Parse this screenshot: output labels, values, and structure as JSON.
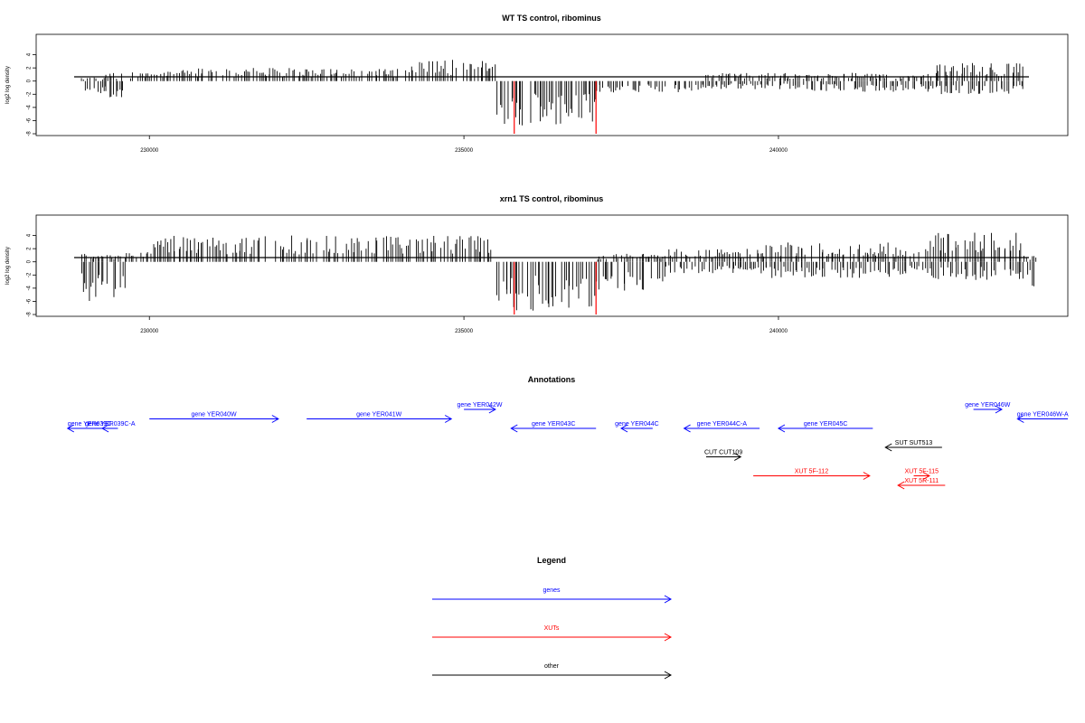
{
  "chart_data": [
    {
      "type": "bar",
      "title": "WT TS control, ribominus",
      "xlabel": "",
      "ylabel": "log2 log density",
      "ylim": [
        -8,
        6
      ],
      "yticks": [
        "4",
        "2",
        "0",
        "-2",
        "-4",
        "-6",
        "-8"
      ],
      "xlim": [
        228200,
        244600
      ],
      "xticks": [
        "230000",
        "235000",
        "240000"
      ],
      "bar_color": "#000000",
      "highlight_color": "#ff0000",
      "highlight_values": [
        {
          "x": 235800,
          "y": -8
        },
        {
          "x": 237100,
          "y": -8
        }
      ],
      "density_profile": [
        {
          "start": 228900,
          "end": 229300,
          "pos": 0.5,
          "neg": 2.2
        },
        {
          "start": 229300,
          "end": 229600,
          "pos": 1.0,
          "neg": 2.5
        },
        {
          "start": 229600,
          "end": 230500,
          "pos": 1.2,
          "neg": 0.2
        },
        {
          "start": 230500,
          "end": 232500,
          "pos": 1.6,
          "neg": 0.2
        },
        {
          "start": 232500,
          "end": 234000,
          "pos": 1.5,
          "neg": 0.2
        },
        {
          "start": 234000,
          "end": 235500,
          "pos": 2.6,
          "neg": 0.3
        },
        {
          "start": 235500,
          "end": 237100,
          "pos": 0.2,
          "neg": 5.5
        },
        {
          "start": 237100,
          "end": 238800,
          "pos": 0.2,
          "neg": 1.4
        },
        {
          "start": 238800,
          "end": 240500,
          "pos": 1.0,
          "neg": 1.0
        },
        {
          "start": 240500,
          "end": 242500,
          "pos": 1.0,
          "neg": 1.3
        },
        {
          "start": 242500,
          "end": 243900,
          "pos": 2.2,
          "neg": 1.6
        }
      ]
    },
    {
      "type": "bar",
      "title": "xrn1 TS control, ribominus",
      "xlabel": "",
      "ylabel": "log2 log density",
      "ylim": [
        -8,
        6
      ],
      "yticks": [
        "4",
        "2",
        "0",
        "-2",
        "-4",
        "-6",
        "-8"
      ],
      "xlim": [
        228200,
        244600
      ],
      "xticks": [
        "230000",
        "235000",
        "240000"
      ],
      "bar_color": "#000000",
      "highlight_color": "#ff0000",
      "highlight_values": [
        {
          "x": 235800,
          "y": -8
        },
        {
          "x": 237100,
          "y": -8
        }
      ],
      "density_profile": [
        {
          "start": 228900,
          "end": 229600,
          "pos": 1.0,
          "neg": 4.8
        },
        {
          "start": 229600,
          "end": 230000,
          "pos": 1.2,
          "neg": 0.3
        },
        {
          "start": 230000,
          "end": 232500,
          "pos": 3.2,
          "neg": 0.2
        },
        {
          "start": 232500,
          "end": 235500,
          "pos": 3.2,
          "neg": 0.2
        },
        {
          "start": 235500,
          "end": 237100,
          "pos": 0.3,
          "neg": 6.0
        },
        {
          "start": 237100,
          "end": 238200,
          "pos": 1.0,
          "neg": 3.8
        },
        {
          "start": 238200,
          "end": 239800,
          "pos": 1.6,
          "neg": 1.4
        },
        {
          "start": 239800,
          "end": 241800,
          "pos": 2.4,
          "neg": 2.0
        },
        {
          "start": 241800,
          "end": 242400,
          "pos": 2.0,
          "neg": 1.6
        },
        {
          "start": 242400,
          "end": 243900,
          "pos": 3.6,
          "neg": 2.2
        },
        {
          "start": 243900,
          "end": 244100,
          "pos": 0.8,
          "neg": 3.2
        }
      ]
    },
    {
      "type": "annotation-track",
      "title": "Annotations",
      "xlim": [
        228200,
        244600
      ],
      "features": [
        {
          "label": "gene YER039C",
          "start": 228700,
          "end": 229400,
          "strand": "-",
          "row": 2,
          "color": "#0000ff"
        },
        {
          "label": "gene YER039C-A",
          "start": 229250,
          "end": 229500,
          "strand": "-",
          "row": 2,
          "color": "#0000ff"
        },
        {
          "label": "gene YER040W",
          "start": 230000,
          "end": 232050,
          "strand": "+",
          "row": 1,
          "color": "#0000ff"
        },
        {
          "label": "gene YER041W",
          "start": 232500,
          "end": 234800,
          "strand": "+",
          "row": 1,
          "color": "#0000ff"
        },
        {
          "label": "gene YER042W",
          "start": 235000,
          "end": 235500,
          "strand": "+",
          "row": 0,
          "color": "#0000ff"
        },
        {
          "label": "gene YER043C",
          "start": 235750,
          "end": 237100,
          "strand": "-",
          "row": 2,
          "color": "#0000ff"
        },
        {
          "label": "gene YER044C",
          "start": 237500,
          "end": 238000,
          "strand": "-",
          "row": 2,
          "color": "#0000ff"
        },
        {
          "label": "gene YER044C-A",
          "start": 238500,
          "end": 239700,
          "strand": "-",
          "row": 2,
          "color": "#0000ff"
        },
        {
          "label": "gene YER045C",
          "start": 240000,
          "end": 241500,
          "strand": "-",
          "row": 2,
          "color": "#0000ff"
        },
        {
          "label": "gene YER046W",
          "start": 243100,
          "end": 243550,
          "strand": "+",
          "row": 0,
          "color": "#0000ff"
        },
        {
          "label": "gene YER046W-A",
          "start": 243800,
          "end": 244600,
          "strand": "-",
          "row": 1,
          "color": "#0000ff"
        },
        {
          "label": "SUT SUT513",
          "start": 241700,
          "end": 242600,
          "strand": "-",
          "row": 4,
          "color": "#000000"
        },
        {
          "label": "CUT CUT109",
          "start": 238850,
          "end": 239400,
          "strand": "+",
          "row": 5,
          "color": "#000000"
        },
        {
          "label": "XUT 5F-112",
          "start": 239600,
          "end": 241450,
          "strand": "+",
          "row": 7,
          "color": "#ff0000"
        },
        {
          "label": "XUT 5F-115",
          "start": 242150,
          "end": 242400,
          "strand": "+",
          "row": 7,
          "color": "#ff0000"
        },
        {
          "label": "XUT 5R-111",
          "start": 241900,
          "end": 242650,
          "strand": "-",
          "row": 8,
          "color": "#ff0000"
        }
      ]
    },
    {
      "type": "legend",
      "title": "Legend",
      "entries": [
        {
          "label": "genes",
          "color": "#0000ff"
        },
        {
          "label": "XUTs",
          "color": "#ff0000"
        },
        {
          "label": "other",
          "color": "#000000"
        }
      ]
    }
  ]
}
